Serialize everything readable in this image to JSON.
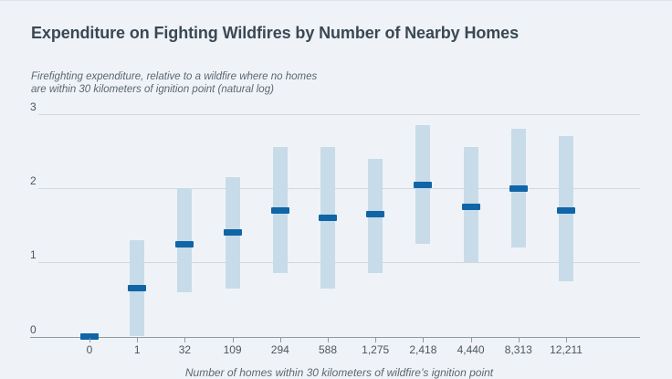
{
  "page": {
    "background": "#eff3f7"
  },
  "header": {
    "title": "Expenditure on Fighting Wildfires by Number of Nearby Homes",
    "subtitle": "Firefighting expenditure, relative to a wildfire where no homes\nare within 30 kilometers of ignition point (natural log)"
  },
  "chart_data": {
    "type": "bar",
    "subtype": "interval-range-with-point-estimates",
    "title": "Expenditure on Fighting Wildfires by Number of Nearby Homes",
    "ylabel": "Firefighting expenditure, relative to a wildfire where no homes are within 30 kilometers of ignition point (natural log)",
    "xlabel": "Number of homes within 30 kilometers of wildfire’s ignition point",
    "categories": [
      "0",
      "1",
      "32",
      "109",
      "294",
      "588",
      "1,275",
      "2,418",
      "4,440",
      "8,313",
      "12,211"
    ],
    "series": [
      {
        "name": "point_estimate",
        "values": [
          0,
          0.65,
          1.25,
          1.4,
          1.7,
          1.6,
          1.65,
          2.05,
          1.75,
          2.0,
          1.7
        ]
      },
      {
        "name": "interval_low",
        "values": [
          0,
          0.0,
          0.6,
          0.65,
          0.85,
          0.65,
          0.85,
          1.25,
          1.0,
          1.2,
          0.75
        ]
      },
      {
        "name": "interval_high",
        "values": [
          0,
          1.3,
          2.0,
          2.15,
          2.55,
          2.55,
          2.4,
          2.85,
          2.55,
          2.8,
          2.7
        ]
      }
    ],
    "ylim": [
      0,
      3
    ],
    "yticks": [
      "0",
      "1",
      "2",
      "3"
    ],
    "grid": true,
    "legend": "none",
    "colors": {
      "interval_bar": "#c8dbe9",
      "point_marker": "#1065a6",
      "gridline": "#d3d8dd",
      "axis": "#8e99a4",
      "title": "#3b4854",
      "text": "#4b5560"
    }
  }
}
